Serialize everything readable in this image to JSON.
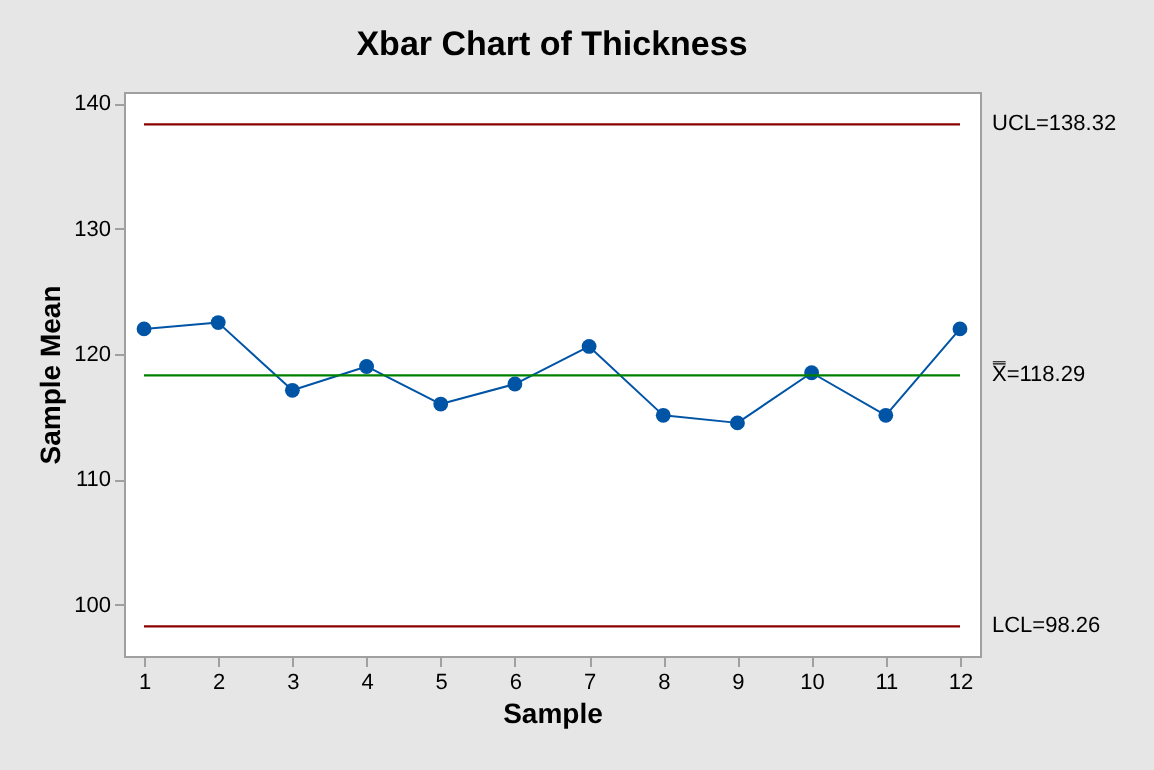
{
  "chart_data": {
    "type": "line",
    "title": "Xbar Chart of Thickness",
    "xlabel": "Sample",
    "ylabel": "Sample Mean",
    "x": [
      1,
      2,
      3,
      4,
      5,
      6,
      7,
      8,
      9,
      10,
      11,
      12
    ],
    "series": [
      {
        "color": "#0054a6",
        "values": [
          122.0,
          122.5,
          117.1,
          119.0,
          116.0,
          117.6,
          120.6,
          115.1,
          114.5,
          118.5,
          115.1,
          122.0
        ]
      }
    ],
    "xlim": [
      0.73,
      12.27
    ],
    "xticks": [
      1,
      2,
      3,
      4,
      5,
      6,
      7,
      8,
      9,
      10,
      11,
      12
    ],
    "ylim": [
      95.9,
      140.9
    ],
    "yticks": [
      100,
      110,
      120,
      130,
      140
    ],
    "ref_lines": [
      {
        "axis": "y",
        "value": 138.32,
        "label": "UCL=138.32",
        "color": "#8b0000"
      },
      {
        "axis": "y",
        "value": 118.29,
        "label": "X̿=118.29",
        "color": "#008000"
      },
      {
        "axis": "y",
        "value": 98.26,
        "label": "LCL=98.26",
        "color": "#8b0000"
      }
    ],
    "grid": false,
    "marker": "circle",
    "line_style": "solid"
  }
}
